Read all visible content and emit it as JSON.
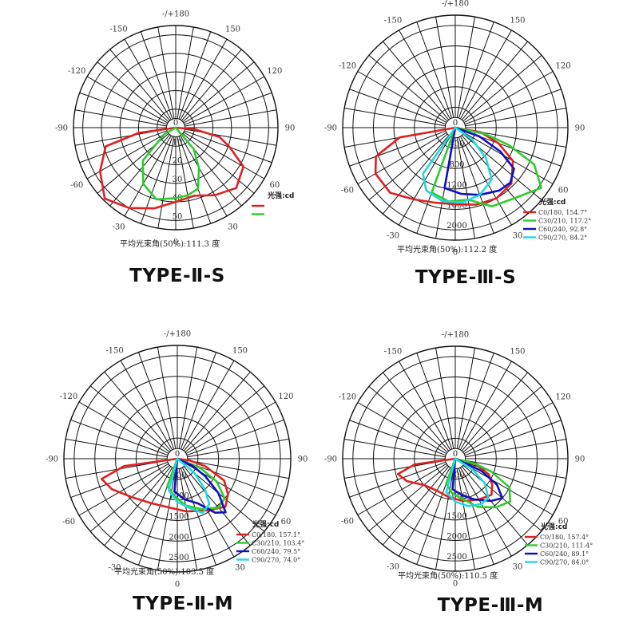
{
  "colors": {
    "C0": "#e02020",
    "C30": "#2ecc2e",
    "C60": "#1010c0",
    "C90": "#20d8e0"
  },
  "chart_data": [
    {
      "type": "polar",
      "title": "TYPE-Ⅱ-S",
      "angle_labels": [
        "-/+180",
        "150",
        "120",
        "90",
        "60",
        "30",
        "0",
        "-30",
        "-60",
        "-90",
        "-120",
        "-150"
      ],
      "radial_ticks": [
        "10",
        "20",
        "30",
        "40",
        "50"
      ],
      "rmax": 55,
      "legend_title": "光强:cd",
      "beam_angle_text": "平均光束角(50%):111.3  度",
      "series": [
        {
          "key": "C0",
          "name": "",
          "values": [
            [
              -82,
              20
            ],
            [
              -75,
              39
            ],
            [
              -60,
              47
            ],
            [
              -45,
              54
            ],
            [
              -30,
              50
            ],
            [
              -15,
              45
            ],
            [
              0,
              40
            ],
            [
              15,
              38
            ],
            [
              30,
              42
            ],
            [
              45,
              46
            ],
            [
              60,
              42
            ],
            [
              70,
              31
            ],
            [
              78,
              24
            ],
            [
              85,
              10
            ]
          ]
        },
        {
          "key": "C30",
          "name": "",
          "values": [
            [
              -60,
              7
            ],
            [
              -45,
              25
            ],
            [
              -30,
              35
            ],
            [
              -15,
              40
            ],
            [
              0,
              38
            ],
            [
              10,
              37
            ],
            [
              20,
              35
            ],
            [
              30,
              25
            ],
            [
              40,
              15
            ]
          ]
        }
      ]
    },
    {
      "type": "polar",
      "title": "TYPE-Ⅲ-S",
      "angle_labels": [
        "-/+180",
        "150",
        "120",
        "90",
        "60",
        "30",
        "0",
        "-30",
        "-60",
        "-90",
        "-120",
        "-150"
      ],
      "radial_ticks": [
        "400",
        "800",
        "1200",
        "1600",
        "2000"
      ],
      "rmax": 2200,
      "legend_title": "光强:cd",
      "beam_angle_text": "平均光束角(50%):112.2  度",
      "series": [
        {
          "key": "C0",
          "name": "C0/180, 154.7°",
          "values": [
            [
              -80,
              1100
            ],
            [
              -70,
              1650
            ],
            [
              -60,
              1800
            ],
            [
              -45,
              1800
            ],
            [
              -30,
              1620
            ],
            [
              -15,
              1520
            ],
            [
              0,
              1500
            ],
            [
              15,
              1560
            ],
            [
              30,
              1600
            ],
            [
              45,
              1550
            ],
            [
              60,
              1300
            ],
            [
              70,
              900
            ],
            [
              80,
              500
            ]
          ]
        },
        {
          "key": "C30",
          "name": "C30/210, 117.2°",
          "values": [
            [
              -20,
              1350
            ],
            [
              -5,
              1450
            ],
            [
              10,
              1430
            ],
            [
              25,
              1700
            ],
            [
              40,
              1800
            ],
            [
              55,
              2050
            ],
            [
              65,
              1700
            ],
            [
              72,
              1100
            ],
            [
              78,
              600
            ]
          ]
        },
        {
          "key": "C60",
          "name": "C60/240, 92.8°",
          "values": [
            [
              -10,
              1200
            ],
            [
              5,
              1300
            ],
            [
              20,
              1400
            ],
            [
              35,
              1500
            ],
            [
              45,
              1520
            ],
            [
              55,
              1400
            ],
            [
              62,
              1000
            ],
            [
              70,
              500
            ]
          ]
        },
        {
          "key": "C90",
          "name": "C90/270, 84.2°",
          "values": [
            [
              -35,
              1100
            ],
            [
              -25,
              1350
            ],
            [
              -10,
              1460
            ],
            [
              5,
              1470
            ],
            [
              20,
              1400
            ],
            [
              35,
              1240
            ],
            [
              45,
              850
            ],
            [
              55,
              400
            ]
          ]
        }
      ]
    },
    {
      "type": "polar",
      "title": "TYPE-Ⅱ-M",
      "angle_labels": [
        "-/+180",
        "150",
        "120",
        "90",
        "60",
        "30",
        "0",
        "-30",
        "-60",
        "-90",
        "-120",
        "-150"
      ],
      "radial_ticks": [
        "500",
        "1000",
        "1500",
        "2000",
        "2500"
      ],
      "rmax": 2750,
      "legend_title": "光强:cd",
      "beam_angle_text": "平均光束角(50%):103.5  度",
      "series": [
        {
          "key": "C0",
          "name": "C0/180, 157.1°",
          "values": [
            [
              -82,
              1300
            ],
            [
              -75,
              1900
            ],
            [
              -65,
              1750
            ],
            [
              -50,
              1450
            ],
            [
              -30,
              1250
            ],
            [
              -10,
              1200
            ],
            [
              10,
              1300
            ],
            [
              30,
              1450
            ],
            [
              45,
              1650
            ],
            [
              55,
              1500
            ],
            [
              65,
              1250
            ],
            [
              75,
              700
            ],
            [
              82,
              300
            ]
          ]
        },
        {
          "key": "C30",
          "name": "C30/210, 103.4°",
          "values": [
            [
              -20,
              700
            ],
            [
              -5,
              900
            ],
            [
              10,
              1150
            ],
            [
              25,
              1350
            ],
            [
              40,
              1550
            ],
            [
              50,
              1500
            ],
            [
              60,
              1100
            ],
            [
              68,
              600
            ]
          ]
        },
        {
          "key": "C60",
          "name": "C60/240, 79.5°",
          "values": [
            [
              -5,
              800
            ],
            [
              10,
              1000
            ],
            [
              25,
              1200
            ],
            [
              35,
              1600
            ],
            [
              42,
              1750
            ],
            [
              50,
              1300
            ],
            [
              58,
              800
            ],
            [
              65,
              400
            ]
          ]
        },
        {
          "key": "C90",
          "name": "C90/270, 74.0°",
          "values": [
            [
              -15,
              800
            ],
            [
              0,
              1050
            ],
            [
              15,
              1250
            ],
            [
              25,
              1450
            ],
            [
              35,
              1350
            ],
            [
              42,
              1000
            ],
            [
              50,
              550
            ]
          ]
        }
      ]
    },
    {
      "type": "polar",
      "title": "TYPE-Ⅲ-M",
      "angle_labels": [
        "-/+180",
        "150",
        "120",
        "90",
        "60",
        "30",
        "0",
        "-30",
        "-60",
        "-90",
        "-120",
        "-150"
      ],
      "radial_ticks": [
        "500",
        "1000",
        "1500",
        "2000",
        "2500"
      ],
      "rmax": 2750,
      "legend_title": "光强:cd",
      "beam_angle_text": "平均光束角(50%):110.5  度",
      "series": [
        {
          "key": "C0",
          "name": "C0/180, 157.4°",
          "values": [
            [
              -82,
              1000
            ],
            [
              -75,
              1450
            ],
            [
              -65,
              1300
            ],
            [
              -50,
              1000
            ],
            [
              -30,
              900
            ],
            [
              -10,
              950
            ],
            [
              10,
              1050
            ],
            [
              30,
              1150
            ],
            [
              45,
              1250
            ],
            [
              55,
              1100
            ],
            [
              65,
              900
            ],
            [
              75,
              500
            ]
          ]
        },
        {
          "key": "C30",
          "name": "C30/210, 111.4°",
          "values": [
            [
              -20,
              650
            ],
            [
              -5,
              850
            ],
            [
              10,
              1000
            ],
            [
              25,
              1300
            ],
            [
              40,
              1550
            ],
            [
              52,
              1700
            ],
            [
              62,
              1500
            ],
            [
              70,
              950
            ],
            [
              76,
              500
            ]
          ]
        },
        {
          "key": "C60",
          "name": "C60/240, 89.1°",
          "values": [
            [
              -5,
              750
            ],
            [
              10,
              900
            ],
            [
              25,
              1100
            ],
            [
              40,
              1350
            ],
            [
              50,
              1500
            ],
            [
              58,
              1200
            ],
            [
              65,
              700
            ]
          ]
        },
        {
          "key": "C90",
          "name": "C90/270, 84.0°",
          "values": [
            [
              -15,
              850
            ],
            [
              0,
              1050
            ],
            [
              15,
              1200
            ],
            [
              30,
              1280
            ],
            [
              40,
              1250
            ],
            [
              50,
              950
            ],
            [
              58,
              500
            ]
          ]
        }
      ]
    }
  ]
}
